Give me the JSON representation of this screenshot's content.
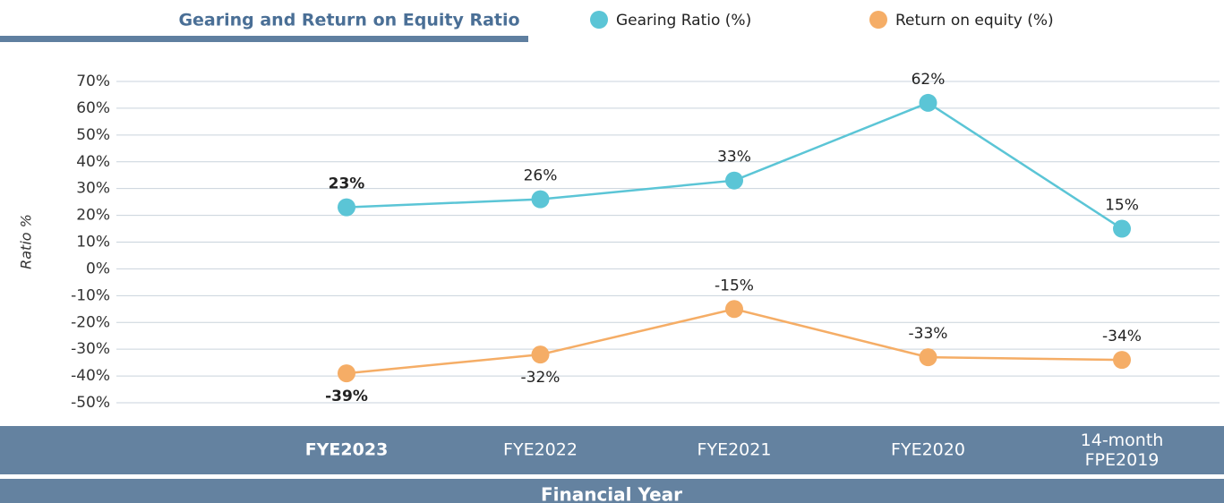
{
  "chart_data": {
    "type": "line",
    "title": "Gearing and Return on Equity Ratio",
    "ylabel": "Ratio %",
    "xlabel": "Financial Year",
    "categories": [
      "FYE2023",
      "FYE2022",
      "FYE2021",
      "FYE2020",
      "14-month FPE2019"
    ],
    "series": [
      {
        "name": "Gearing Ratio (%)",
        "color": "#5bc5d6",
        "values": [
          23,
          26,
          33,
          62,
          15
        ],
        "value_labels": [
          "23%",
          "26%",
          "33%",
          "62%",
          "15%"
        ]
      },
      {
        "name": "Return on equity (%)",
        "color": "#f5ad66",
        "values": [
          -39,
          -32,
          -15,
          -33,
          -34
        ],
        "value_labels": [
          "-39%",
          "-32%",
          "-15%",
          "-33%",
          "-34%"
        ]
      }
    ],
    "ylim": [
      -50,
      70
    ],
    "yticks": [
      {
        "value": 70,
        "label": "70%"
      },
      {
        "value": 60,
        "label": "60%"
      },
      {
        "value": 50,
        "label": "50%"
      },
      {
        "value": 40,
        "label": "40%"
      },
      {
        "value": 30,
        "label": "30%"
      },
      {
        "value": 20,
        "label": "20%"
      },
      {
        "value": 10,
        "label": "10%"
      },
      {
        "value": 0,
        "label": "0%"
      },
      {
        "value": -10,
        "label": "-10%"
      },
      {
        "value": -20,
        "label": "-20%"
      },
      {
        "value": -30,
        "label": "-30%"
      },
      {
        "value": -40,
        "label": "-40%"
      },
      {
        "value": -50,
        "label": "-50%"
      }
    ],
    "grid": true
  }
}
